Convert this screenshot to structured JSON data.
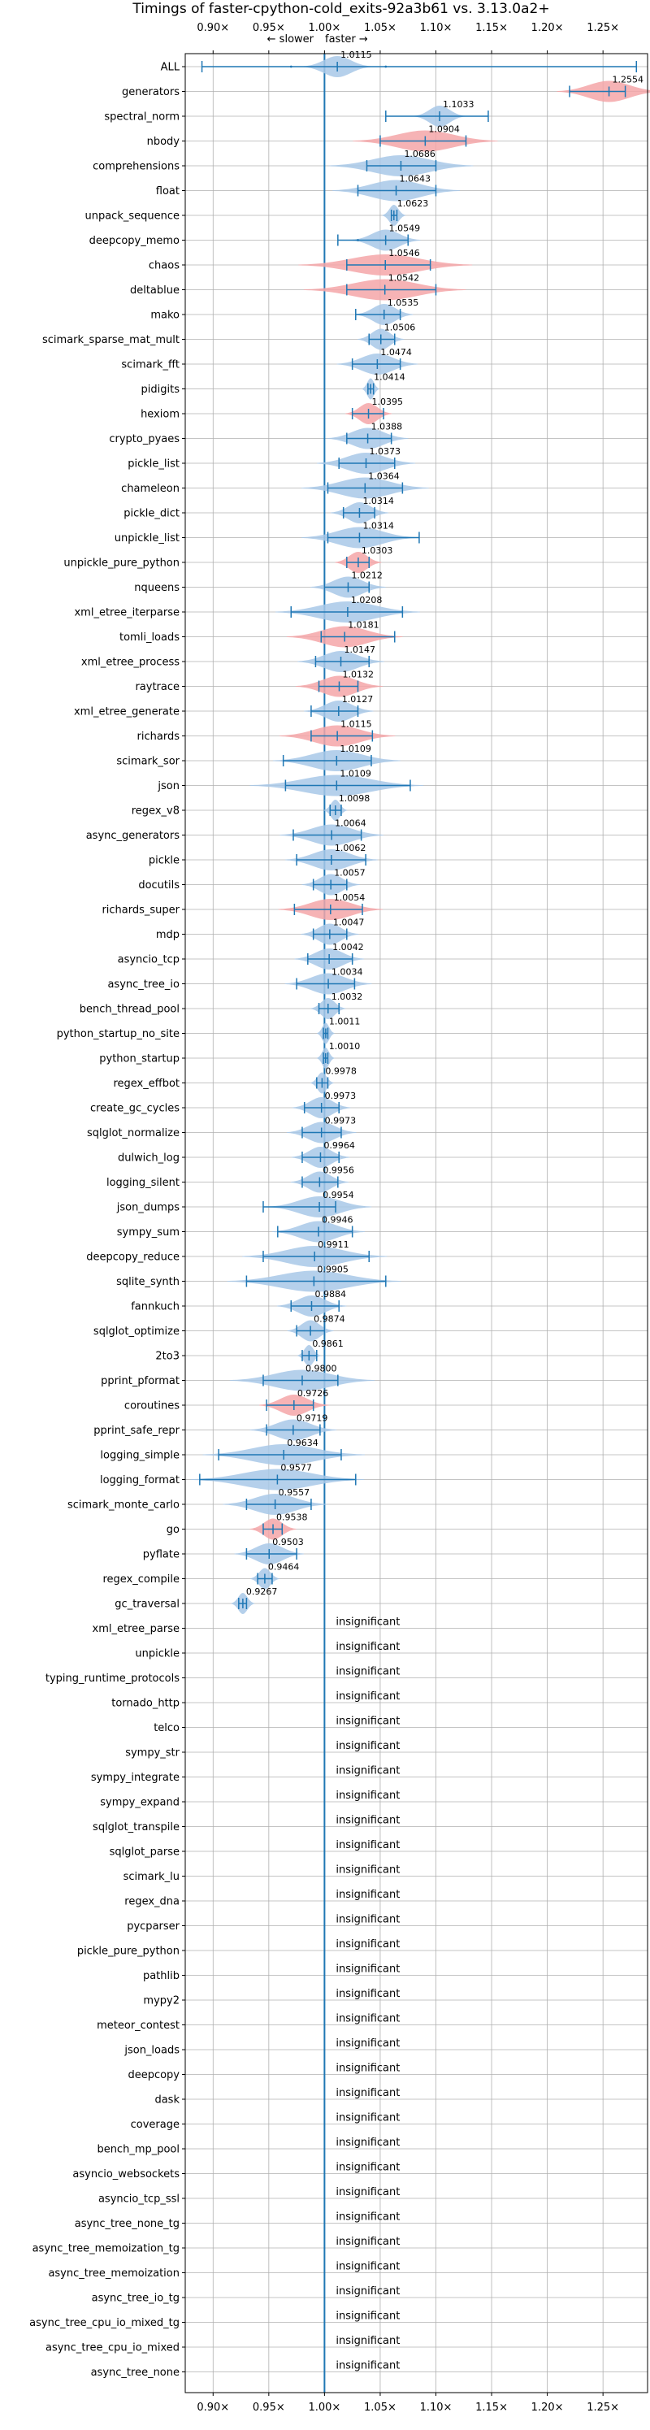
{
  "chart_data": {
    "type": "violin",
    "title": "Timings of faster-cpython-cold_exits-92a3b61 vs. 3.13.0a2+",
    "direction_labels": {
      "slower": "← slower",
      "faster": "faster →"
    },
    "xlim": [
      0.875,
      1.29
    ],
    "xticks": [
      0.9,
      0.95,
      1.0,
      1.05,
      1.1,
      1.15,
      1.2,
      1.25
    ],
    "xtick_labels": [
      "0.90×",
      "0.95×",
      "1.00×",
      "1.05×",
      "1.10×",
      "1.15×",
      "1.20×",
      "1.25×"
    ],
    "reference_line": 1.0,
    "colors": {
      "faster": "#a8c8e8",
      "slower": "#f4a6a8",
      "line": "#1f77b4",
      "grid": "#b0b0b0"
    },
    "insignificant_text": "insignificant",
    "benchmarks": [
      {
        "name": "ALL",
        "value": 1.0115,
        "label": "1.0115",
        "low": 0.89,
        "high": 1.28,
        "spread": 0.012,
        "color": "faster",
        "dots": [
          0.97,
          1.055
        ]
      },
      {
        "name": "generators",
        "value": 1.2554,
        "label": "1.2554",
        "low": 1.22,
        "high": 1.27,
        "spread": 0.018,
        "color": "slower"
      },
      {
        "name": "spectral_norm",
        "value": 1.1033,
        "label": "1.1033",
        "low": 1.055,
        "high": 1.147,
        "spread": 0.009,
        "color": "faster"
      },
      {
        "name": "nbody",
        "value": 1.0904,
        "label": "1.0904",
        "low": 1.05,
        "high": 1.127,
        "spread": 0.025,
        "color": "slower"
      },
      {
        "name": "comprehensions",
        "value": 1.0686,
        "label": "1.0686",
        "low": 1.038,
        "high": 1.1,
        "spread": 0.025,
        "color": "faster"
      },
      {
        "name": "float",
        "value": 1.0643,
        "label": "1.0643",
        "low": 1.03,
        "high": 1.1,
        "spread": 0.022,
        "color": "faster"
      },
      {
        "name": "unpack_sequence",
        "value": 1.0623,
        "label": "1.0623",
        "low": 1.06,
        "high": 1.065,
        "spread": 0.004,
        "color": "faster"
      },
      {
        "name": "deepcopy_memo",
        "value": 1.0549,
        "label": "1.0549",
        "low": 1.012,
        "high": 1.075,
        "spread": 0.012,
        "color": "faster",
        "dots": [
          1.03
        ]
      },
      {
        "name": "chaos",
        "value": 1.0546,
        "label": "1.0546",
        "low": 1.02,
        "high": 1.095,
        "spread": 0.03,
        "color": "slower"
      },
      {
        "name": "deltablue",
        "value": 1.0542,
        "label": "1.0542",
        "low": 1.02,
        "high": 1.1,
        "spread": 0.028,
        "color": "slower"
      },
      {
        "name": "mako",
        "value": 1.0535,
        "label": "1.0535",
        "low": 1.028,
        "high": 1.068,
        "spread": 0.01,
        "color": "faster"
      },
      {
        "name": "scimark_sparse_mat_mult",
        "value": 1.0506,
        "label": "1.0506",
        "low": 1.04,
        "high": 1.063,
        "spread": 0.008,
        "color": "faster"
      },
      {
        "name": "scimark_fft",
        "value": 1.0474,
        "label": "1.0474",
        "low": 1.025,
        "high": 1.068,
        "spread": 0.014,
        "color": "faster"
      },
      {
        "name": "pidigits",
        "value": 1.0414,
        "label": "1.0414",
        "low": 1.039,
        "high": 1.044,
        "spread": 0.003,
        "color": "faster"
      },
      {
        "name": "hexiom",
        "value": 1.0395,
        "label": "1.0395",
        "low": 1.025,
        "high": 1.053,
        "spread": 0.008,
        "color": "slower"
      },
      {
        "name": "crypto_pyaes",
        "value": 1.0388,
        "label": "1.0388",
        "low": 1.02,
        "high": 1.06,
        "spread": 0.014,
        "color": "faster"
      },
      {
        "name": "pickle_list",
        "value": 1.0373,
        "label": "1.0373",
        "low": 1.013,
        "high": 1.063,
        "spread": 0.017,
        "color": "faster"
      },
      {
        "name": "chameleon",
        "value": 1.0364,
        "label": "1.0364",
        "low": 1.003,
        "high": 1.07,
        "spread": 0.022,
        "color": "faster"
      },
      {
        "name": "pickle_dict",
        "value": 1.0314,
        "label": "1.0314",
        "low": 1.017,
        "high": 1.045,
        "spread": 0.01,
        "color": "faster"
      },
      {
        "name": "unpickle_list",
        "value": 1.0314,
        "label": "1.0314",
        "low": 1.003,
        "high": 1.085,
        "spread": 0.02,
        "color": "faster"
      },
      {
        "name": "unpickle_pure_python",
        "value": 1.0303,
        "label": "1.0303",
        "low": 1.02,
        "high": 1.04,
        "spread": 0.008,
        "color": "slower"
      },
      {
        "name": "nqueens",
        "value": 1.0212,
        "label": "1.0212",
        "low": 1.0,
        "high": 1.04,
        "spread": 0.013,
        "color": "faster"
      },
      {
        "name": "xml_etree_iterparse",
        "value": 1.0208,
        "label": "1.0208",
        "low": 0.97,
        "high": 1.07,
        "spread": 0.025,
        "color": "faster"
      },
      {
        "name": "tomli_loads",
        "value": 1.0181,
        "label": "1.0181",
        "low": 0.997,
        "high": 1.063,
        "spread": 0.02,
        "color": "slower"
      },
      {
        "name": "xml_etree_process",
        "value": 1.0147,
        "label": "1.0147",
        "low": 0.992,
        "high": 1.04,
        "spread": 0.015,
        "color": "faster"
      },
      {
        "name": "raytrace",
        "value": 1.0132,
        "label": "1.0132",
        "low": 0.995,
        "high": 1.03,
        "spread": 0.015,
        "color": "slower"
      },
      {
        "name": "xml_etree_generate",
        "value": 1.0127,
        "label": "1.0127",
        "low": 0.988,
        "high": 1.03,
        "spread": 0.012,
        "color": "faster"
      },
      {
        "name": "richards",
        "value": 1.0115,
        "label": "1.0115",
        "low": 0.988,
        "high": 1.043,
        "spread": 0.02,
        "color": "slower"
      },
      {
        "name": "scimark_sor",
        "value": 1.0109,
        "label": "1.0109",
        "low": 0.963,
        "high": 1.042,
        "spread": 0.022,
        "color": "faster"
      },
      {
        "name": "json",
        "value": 1.0109,
        "label": "1.0109",
        "low": 0.965,
        "high": 1.077,
        "spread": 0.03,
        "color": "faster"
      },
      {
        "name": "regex_v8",
        "value": 1.0098,
        "label": "1.0098",
        "low": 1.005,
        "high": 1.015,
        "spread": 0.004,
        "color": "faster"
      },
      {
        "name": "async_generators",
        "value": 1.0064,
        "label": "1.0064",
        "low": 0.972,
        "high": 1.033,
        "spread": 0.018,
        "color": "faster"
      },
      {
        "name": "pickle",
        "value": 1.0062,
        "label": "1.0062",
        "low": 0.975,
        "high": 1.037,
        "spread": 0.016,
        "color": "faster"
      },
      {
        "name": "docutils",
        "value": 1.0057,
        "label": "1.0057",
        "low": 0.99,
        "high": 1.02,
        "spread": 0.01,
        "color": "faster"
      },
      {
        "name": "richards_super",
        "value": 1.0054,
        "label": "1.0054",
        "low": 0.973,
        "high": 1.034,
        "spread": 0.018,
        "color": "slower"
      },
      {
        "name": "mdp",
        "value": 1.0047,
        "label": "1.0047",
        "low": 0.99,
        "high": 1.02,
        "spread": 0.01,
        "color": "faster"
      },
      {
        "name": "asyncio_tcp",
        "value": 1.0042,
        "label": "1.0042",
        "low": 0.985,
        "high": 1.025,
        "spread": 0.012,
        "color": "faster"
      },
      {
        "name": "async_tree_io",
        "value": 1.0034,
        "label": "1.0034",
        "low": 0.975,
        "high": 1.027,
        "spread": 0.015,
        "color": "faster"
      },
      {
        "name": "bench_thread_pool",
        "value": 1.0032,
        "label": "1.0032",
        "low": 0.995,
        "high": 1.013,
        "spread": 0.006,
        "color": "faster"
      },
      {
        "name": "python_startup_no_site",
        "value": 1.0011,
        "label": "1.0011",
        "low": 0.999,
        "high": 1.003,
        "spread": 0.003,
        "color": "faster"
      },
      {
        "name": "python_startup",
        "value": 1.001,
        "label": "1.0010",
        "low": 0.999,
        "high": 1.003,
        "spread": 0.003,
        "color": "faster"
      },
      {
        "name": "regex_effbot",
        "value": 0.9978,
        "label": "0.9978",
        "low": 0.993,
        "high": 1.003,
        "spread": 0.004,
        "color": "faster"
      },
      {
        "name": "create_gc_cycles",
        "value": 0.9973,
        "label": "0.9973",
        "low": 0.982,
        "high": 1.013,
        "spread": 0.01,
        "color": "faster"
      },
      {
        "name": "sqlglot_normalize",
        "value": 0.9973,
        "label": "0.9973",
        "low": 0.98,
        "high": 1.015,
        "spread": 0.012,
        "color": "faster"
      },
      {
        "name": "dulwich_log",
        "value": 0.9964,
        "label": "0.9964",
        "low": 0.98,
        "high": 1.013,
        "spread": 0.01,
        "color": "faster"
      },
      {
        "name": "logging_silent",
        "value": 0.9956,
        "label": "0.9956",
        "low": 0.98,
        "high": 1.012,
        "spread": 0.01,
        "color": "faster"
      },
      {
        "name": "json_dumps",
        "value": 0.9954,
        "label": "0.9954",
        "low": 0.945,
        "high": 1.01,
        "spread": 0.018,
        "color": "faster"
      },
      {
        "name": "sympy_sum",
        "value": 0.9946,
        "label": "0.9946",
        "low": 0.958,
        "high": 1.025,
        "spread": 0.016,
        "color": "faster"
      },
      {
        "name": "deepcopy_reduce",
        "value": 0.9911,
        "label": "0.9911",
        "low": 0.945,
        "high": 1.04,
        "spread": 0.025,
        "color": "faster"
      },
      {
        "name": "sqlite_synth",
        "value": 0.9905,
        "label": "0.9905",
        "low": 0.93,
        "high": 1.055,
        "spread": 0.03,
        "color": "faster"
      },
      {
        "name": "fannkuch",
        "value": 0.9884,
        "label": "0.9884",
        "low": 0.97,
        "high": 1.013,
        "spread": 0.012,
        "color": "faster"
      },
      {
        "name": "sqlglot_optimize",
        "value": 0.9874,
        "label": "0.9874",
        "low": 0.975,
        "high": 1.0,
        "spread": 0.008,
        "color": "faster"
      },
      {
        "name": "2to3",
        "value": 0.9861,
        "label": "0.9861",
        "low": 0.98,
        "high": 0.993,
        "spread": 0.004,
        "color": "faster"
      },
      {
        "name": "pprint_pformat",
        "value": 0.98,
        "label": "0.9800",
        "low": 0.945,
        "high": 1.012,
        "spread": 0.025,
        "color": "faster"
      },
      {
        "name": "coroutines",
        "value": 0.9726,
        "label": "0.9726",
        "low": 0.948,
        "high": 0.99,
        "spread": 0.012,
        "color": "slower"
      },
      {
        "name": "pprint_safe_repr",
        "value": 0.9719,
        "label": "0.9719",
        "low": 0.948,
        "high": 0.996,
        "spread": 0.015,
        "color": "faster"
      },
      {
        "name": "logging_simple",
        "value": 0.9634,
        "label": "0.9634",
        "low": 0.905,
        "high": 1.015,
        "spread": 0.028,
        "color": "faster"
      },
      {
        "name": "logging_format",
        "value": 0.9577,
        "label": "0.9577",
        "low": 0.888,
        "high": 1.028,
        "spread": 0.03,
        "color": "faster"
      },
      {
        "name": "scimark_monte_carlo",
        "value": 0.9557,
        "label": "0.9557",
        "low": 0.93,
        "high": 0.988,
        "spread": 0.018,
        "color": "faster"
      },
      {
        "name": "go",
        "value": 0.9538,
        "label": "0.9538",
        "low": 0.945,
        "high": 0.962,
        "spread": 0.008,
        "color": "slower"
      },
      {
        "name": "pyflate",
        "value": 0.9503,
        "label": "0.9503",
        "low": 0.93,
        "high": 0.975,
        "spread": 0.012,
        "color": "faster"
      },
      {
        "name": "regex_compile",
        "value": 0.9464,
        "label": "0.9464",
        "low": 0.94,
        "high": 0.953,
        "spread": 0.005,
        "color": "faster"
      },
      {
        "name": "gc_traversal",
        "value": 0.9267,
        "label": "0.9267",
        "low": 0.923,
        "high": 0.93,
        "spread": 0.004,
        "color": "faster"
      },
      {
        "name": "xml_etree_parse",
        "insignificant": true
      },
      {
        "name": "unpickle",
        "insignificant": true
      },
      {
        "name": "typing_runtime_protocols",
        "insignificant": true
      },
      {
        "name": "tornado_http",
        "insignificant": true
      },
      {
        "name": "telco",
        "insignificant": true
      },
      {
        "name": "sympy_str",
        "insignificant": true
      },
      {
        "name": "sympy_integrate",
        "insignificant": true
      },
      {
        "name": "sympy_expand",
        "insignificant": true
      },
      {
        "name": "sqlglot_transpile",
        "insignificant": true
      },
      {
        "name": "sqlglot_parse",
        "insignificant": true
      },
      {
        "name": "scimark_lu",
        "insignificant": true
      },
      {
        "name": "regex_dna",
        "insignificant": true
      },
      {
        "name": "pycparser",
        "insignificant": true
      },
      {
        "name": "pickle_pure_python",
        "insignificant": true
      },
      {
        "name": "pathlib",
        "insignificant": true
      },
      {
        "name": "mypy2",
        "insignificant": true
      },
      {
        "name": "meteor_contest",
        "insignificant": true
      },
      {
        "name": "json_loads",
        "insignificant": true
      },
      {
        "name": "deepcopy",
        "insignificant": true
      },
      {
        "name": "dask",
        "insignificant": true
      },
      {
        "name": "coverage",
        "insignificant": true
      },
      {
        "name": "bench_mp_pool",
        "insignificant": true
      },
      {
        "name": "asyncio_websockets",
        "insignificant": true
      },
      {
        "name": "asyncio_tcp_ssl",
        "insignificant": true
      },
      {
        "name": "async_tree_none_tg",
        "insignificant": true
      },
      {
        "name": "async_tree_memoization_tg",
        "insignificant": true
      },
      {
        "name": "async_tree_memoization",
        "insignificant": true
      },
      {
        "name": "async_tree_io_tg",
        "insignificant": true
      },
      {
        "name": "async_tree_cpu_io_mixed_tg",
        "insignificant": true
      },
      {
        "name": "async_tree_cpu_io_mixed",
        "insignificant": true
      },
      {
        "name": "async_tree_none",
        "insignificant": true
      }
    ]
  }
}
